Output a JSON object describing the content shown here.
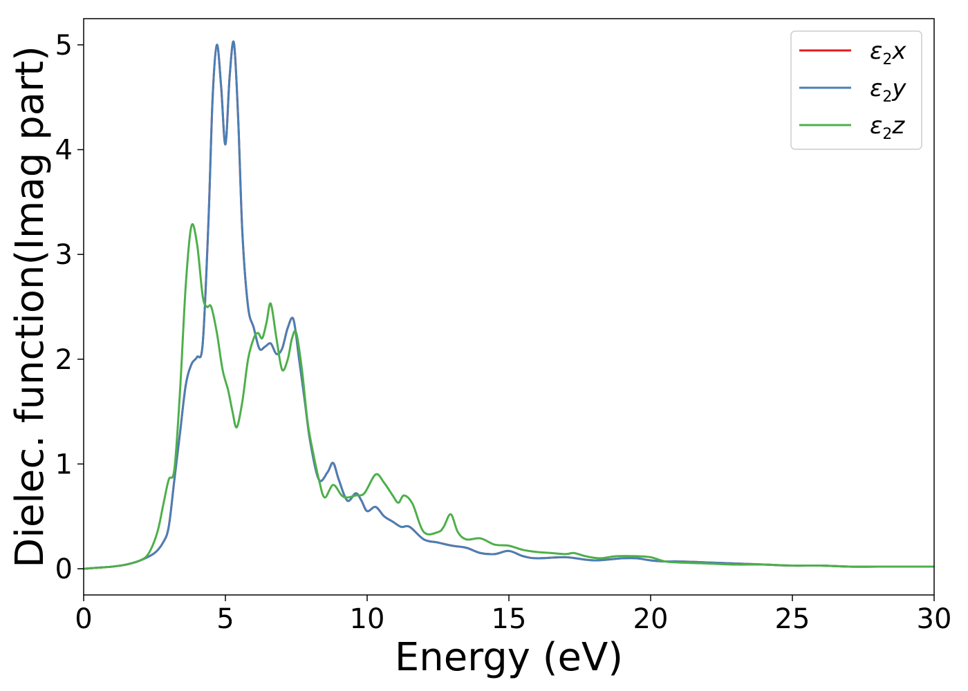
{
  "chart_data": {
    "type": "line",
    "title": "",
    "xlabel": "Energy (eV)",
    "ylabel": "Dielec. function(Imag part)",
    "xlim": [
      0,
      30
    ],
    "ylim": [
      -0.25,
      5.25
    ],
    "xticks": [
      0,
      5,
      10,
      15,
      20,
      25,
      30
    ],
    "yticks": [
      0,
      1,
      2,
      3,
      4,
      5
    ],
    "x_tick_labels": [
      "0",
      "5",
      "10",
      "15",
      "20",
      "25",
      "30"
    ],
    "y_tick_labels": [
      "0",
      "1",
      "2",
      "3",
      "4",
      "5"
    ],
    "grid": false,
    "legend_position": "top-right",
    "series": [
      {
        "name": "ε2x",
        "legend_main": "ε",
        "legend_sub": "2",
        "legend_var": "x",
        "color": "#e41a1c",
        "x": [
          0,
          0.5,
          1,
          1.5,
          2,
          2.5,
          2.8,
          3.0,
          3.2,
          3.4,
          3.6,
          3.8,
          4.0,
          4.2,
          4.4,
          4.55,
          4.7,
          4.85,
          5.0,
          5.15,
          5.3,
          5.45,
          5.6,
          5.8,
          6.0,
          6.2,
          6.4,
          6.6,
          6.8,
          7.0,
          7.2,
          7.4,
          7.6,
          7.8,
          8.0,
          8.3,
          8.6,
          8.8,
          9.0,
          9.3,
          9.6,
          9.8,
          10.0,
          10.3,
          10.6,
          10.9,
          11.2,
          11.5,
          12.0,
          12.5,
          13.0,
          13.5,
          14.0,
          14.5,
          15.0,
          15.5,
          16.0,
          17.0,
          18.0,
          19.0,
          19.5,
          20.0,
          20.5,
          21.0,
          22.0,
          23.0,
          24.0,
          25.0,
          26.0,
          27.0,
          28.0,
          29.0,
          30.0
        ],
        "y": [
          0.0,
          0.01,
          0.02,
          0.04,
          0.08,
          0.15,
          0.25,
          0.4,
          0.85,
          1.3,
          1.75,
          1.95,
          2.02,
          2.15,
          3.3,
          4.5,
          5.0,
          4.6,
          4.05,
          4.7,
          5.02,
          4.3,
          3.2,
          2.5,
          2.3,
          2.1,
          2.12,
          2.15,
          2.05,
          2.1,
          2.3,
          2.38,
          2.0,
          1.6,
          1.2,
          0.85,
          0.92,
          1.01,
          0.85,
          0.65,
          0.72,
          0.65,
          0.55,
          0.59,
          0.5,
          0.45,
          0.4,
          0.4,
          0.28,
          0.25,
          0.22,
          0.2,
          0.15,
          0.14,
          0.17,
          0.12,
          0.1,
          0.11,
          0.08,
          0.1,
          0.1,
          0.08,
          0.07,
          0.07,
          0.06,
          0.05,
          0.04,
          0.03,
          0.03,
          0.02,
          0.02,
          0.02,
          0.02
        ]
      },
      {
        "name": "ε2y",
        "legend_main": "ε",
        "legend_sub": "2",
        "legend_var": "y",
        "color": "#4a7fb5",
        "x": [
          0,
          0.5,
          1,
          1.5,
          2,
          2.5,
          2.8,
          3.0,
          3.2,
          3.4,
          3.6,
          3.8,
          4.0,
          4.2,
          4.4,
          4.55,
          4.7,
          4.85,
          5.0,
          5.15,
          5.3,
          5.45,
          5.6,
          5.8,
          6.0,
          6.2,
          6.4,
          6.6,
          6.8,
          7.0,
          7.2,
          7.4,
          7.6,
          7.8,
          8.0,
          8.3,
          8.6,
          8.8,
          9.0,
          9.3,
          9.6,
          9.8,
          10.0,
          10.3,
          10.6,
          10.9,
          11.2,
          11.5,
          12.0,
          12.5,
          13.0,
          13.5,
          14.0,
          14.5,
          15.0,
          15.5,
          16.0,
          17.0,
          18.0,
          19.0,
          19.5,
          20.0,
          20.5,
          21.0,
          22.0,
          23.0,
          24.0,
          25.0,
          26.0,
          27.0,
          28.0,
          29.0,
          30.0
        ],
        "y": [
          0.0,
          0.01,
          0.02,
          0.04,
          0.08,
          0.15,
          0.25,
          0.4,
          0.85,
          1.3,
          1.75,
          1.95,
          2.02,
          2.15,
          3.3,
          4.5,
          5.0,
          4.6,
          4.05,
          4.7,
          5.02,
          4.3,
          3.2,
          2.5,
          2.3,
          2.1,
          2.12,
          2.15,
          2.05,
          2.1,
          2.3,
          2.38,
          2.0,
          1.6,
          1.2,
          0.85,
          0.92,
          1.01,
          0.85,
          0.65,
          0.72,
          0.65,
          0.55,
          0.59,
          0.5,
          0.45,
          0.4,
          0.4,
          0.28,
          0.25,
          0.22,
          0.2,
          0.15,
          0.14,
          0.17,
          0.12,
          0.1,
          0.11,
          0.08,
          0.1,
          0.1,
          0.08,
          0.07,
          0.07,
          0.06,
          0.05,
          0.04,
          0.03,
          0.03,
          0.02,
          0.02,
          0.02,
          0.02
        ]
      },
      {
        "name": "ε2z",
        "legend_main": "ε",
        "legend_sub": "2",
        "legend_var": "z",
        "color": "#4daf4a",
        "x": [
          0,
          0.5,
          1,
          1.5,
          2,
          2.3,
          2.6,
          2.8,
          3.0,
          3.2,
          3.4,
          3.6,
          3.8,
          4.0,
          4.2,
          4.35,
          4.5,
          4.7,
          4.9,
          5.1,
          5.25,
          5.4,
          5.6,
          5.8,
          6.0,
          6.15,
          6.3,
          6.45,
          6.6,
          6.8,
          7.0,
          7.2,
          7.35,
          7.5,
          7.7,
          7.9,
          8.1,
          8.3,
          8.5,
          8.8,
          9.1,
          9.3,
          9.6,
          9.9,
          10.3,
          10.6,
          10.9,
          11.1,
          11.3,
          11.6,
          12.0,
          12.5,
          12.7,
          12.95,
          13.2,
          13.5,
          14.0,
          14.5,
          15.0,
          15.5,
          16.0,
          16.5,
          17.0,
          17.3,
          17.7,
          18.2,
          18.8,
          19.5,
          20.0,
          20.5,
          21.0,
          22.0,
          23.0,
          24.0,
          25.0,
          26.0,
          27.0,
          28.0,
          29.0,
          30.0
        ],
        "y": [
          0.0,
          0.01,
          0.02,
          0.04,
          0.08,
          0.15,
          0.35,
          0.6,
          0.85,
          0.95,
          1.7,
          2.7,
          3.27,
          3.1,
          2.6,
          2.5,
          2.5,
          2.25,
          1.9,
          1.7,
          1.5,
          1.35,
          1.6,
          2.0,
          2.2,
          2.25,
          2.2,
          2.35,
          2.53,
          2.2,
          1.9,
          2.0,
          2.2,
          2.25,
          1.9,
          1.4,
          1.1,
          0.85,
          0.68,
          0.8,
          0.7,
          0.68,
          0.7,
          0.72,
          0.9,
          0.82,
          0.7,
          0.63,
          0.7,
          0.62,
          0.35,
          0.35,
          0.4,
          0.52,
          0.35,
          0.28,
          0.29,
          0.23,
          0.22,
          0.18,
          0.16,
          0.15,
          0.14,
          0.15,
          0.12,
          0.1,
          0.12,
          0.12,
          0.11,
          0.07,
          0.06,
          0.05,
          0.04,
          0.04,
          0.03,
          0.03,
          0.02,
          0.02,
          0.02,
          0.02
        ]
      }
    ]
  }
}
